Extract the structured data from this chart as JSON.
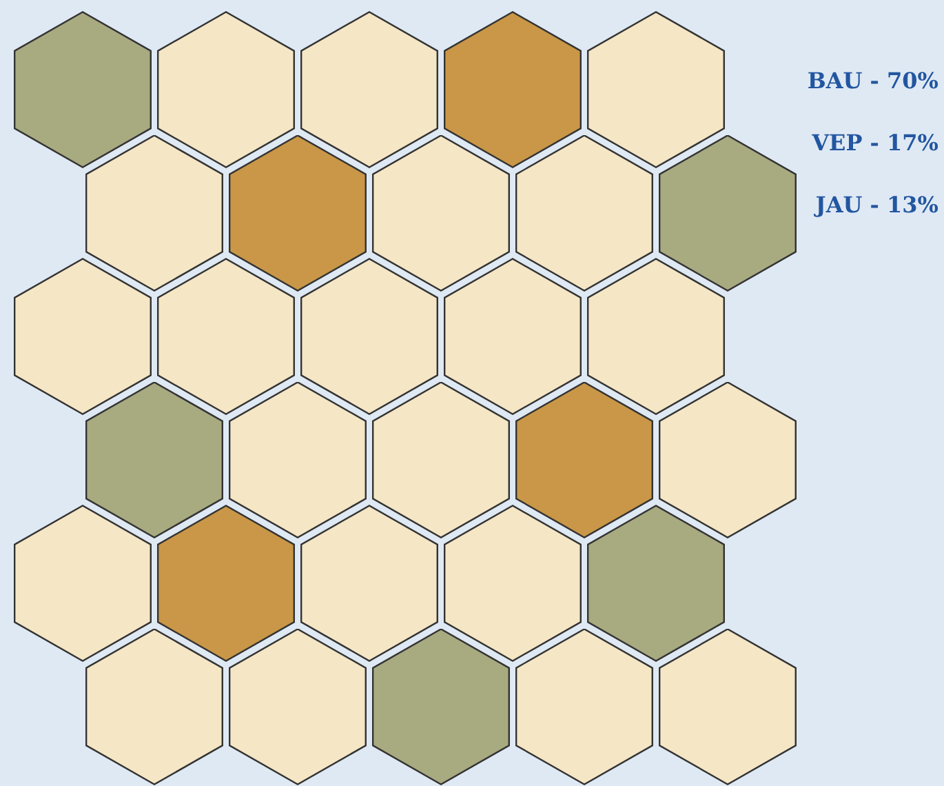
{
  "chart_data": {
    "type": "other",
    "categories": [
      "BAU -",
      "VEP -",
      "JAU -"
    ],
    "values": [
      70,
      17,
      13
    ],
    "value_labels": [
      "70%",
      "17%",
      "13%"
    ],
    "colors": [
      "#f5e6c5",
      "#a8aa80",
      "#c99747"
    ]
  }
}
